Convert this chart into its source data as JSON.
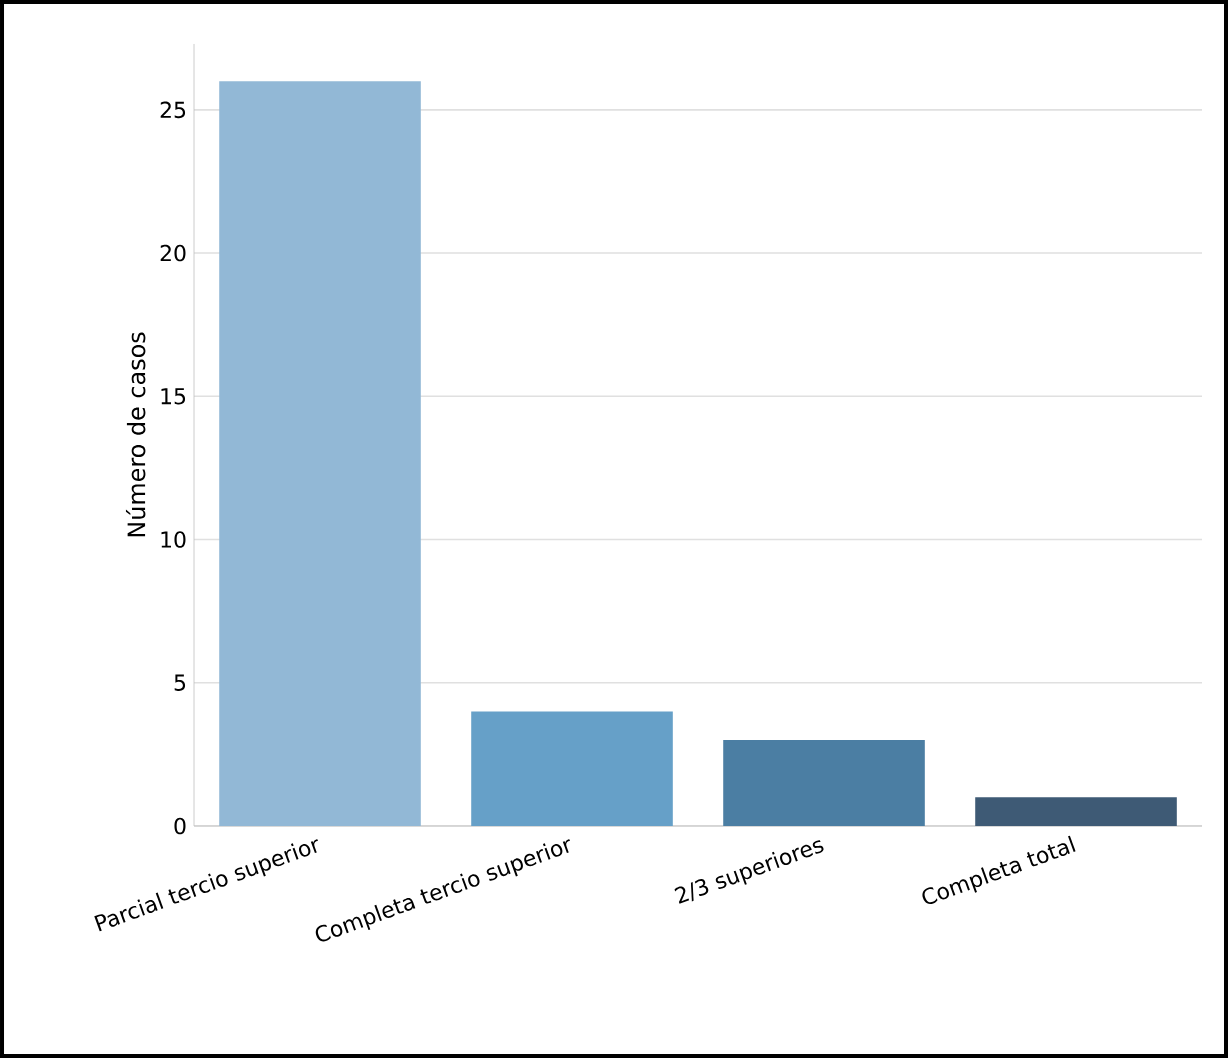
{
  "chart_data": {
    "type": "bar",
    "ylabel": "Número de casos",
    "categories": [
      "Parcial tercio superior",
      "Completa tercio superior",
      "2/3 superiores",
      "Completa total"
    ],
    "values": [
      26,
      4,
      3,
      1
    ],
    "colors": [
      "#92b8d6",
      "#66a0c8",
      "#4b7ea3",
      "#3e5a75"
    ],
    "ylim": [
      0,
      27.3
    ],
    "yticks": [
      0,
      5,
      10,
      15,
      20,
      25
    ],
    "grid": "y"
  }
}
